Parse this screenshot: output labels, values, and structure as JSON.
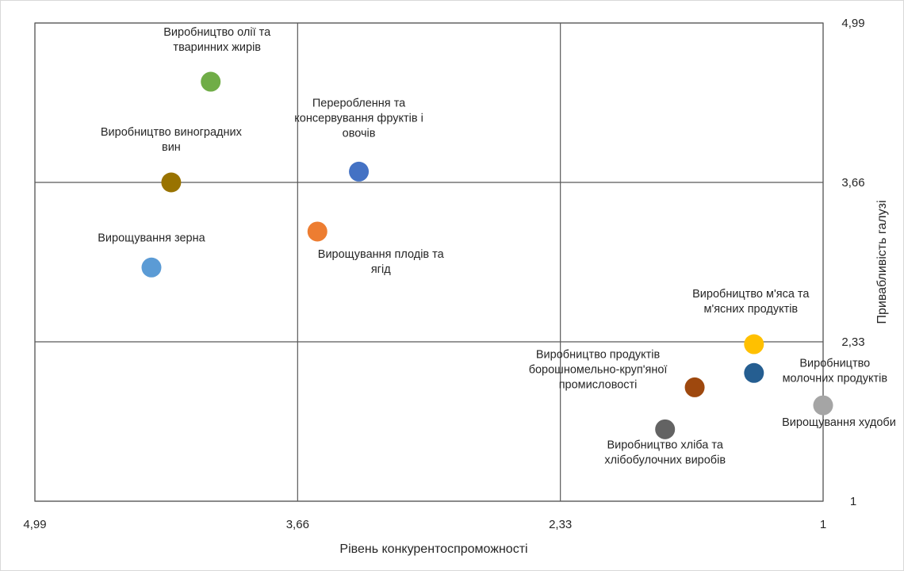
{
  "chart_data": {
    "type": "scatter",
    "xlabel": "Рівень конкурентоспроможності",
    "ylabel": "Привабливість галузі",
    "x_reversed": true,
    "xlim": [
      1,
      4.99
    ],
    "ylim": [
      1,
      4.99
    ],
    "x_ticks": [
      "4,99",
      "3,66",
      "2,33",
      "1"
    ],
    "y_ticks": [
      "4,99",
      "3,66",
      "2,33",
      "1"
    ],
    "x_tick_values": [
      4.99,
      3.66,
      2.33,
      1
    ],
    "y_tick_values": [
      4.99,
      3.66,
      2.33,
      1
    ],
    "grid": true,
    "points": [
      {
        "lines": [
          "Виробництво олії та",
          "тваринних жирів"
        ],
        "x": 4.1,
        "y": 4.5,
        "color": "#70ad47"
      },
      {
        "lines": [
          "Виробництво виноградних",
          "вин"
        ],
        "x": 4.3,
        "y": 3.66,
        "color": "#997300"
      },
      {
        "lines": [
          "Перероблення та",
          "консервування фруктів і",
          "овочів"
        ],
        "x": 3.35,
        "y": 3.75,
        "color": "#4472c4"
      },
      {
        "lines": [
          "Вирощування плодів та",
          "ягід"
        ],
        "x": 3.56,
        "y": 3.25,
        "color": "#ed7d31"
      },
      {
        "lines": [
          "Вирощування зерна"
        ],
        "x": 4.4,
        "y": 2.95,
        "color": "#5b9bd5"
      },
      {
        "lines": [
          "Виробництво м'яса та",
          "м'ясних продуктів"
        ],
        "x": 1.35,
        "y": 2.31,
        "color": "#ffc000"
      },
      {
        "lines": [
          "Виробництво",
          "молочних продуктів"
        ],
        "x": 1.35,
        "y": 2.07,
        "color": "#255e91"
      },
      {
        "lines": [
          "Виробництво продуктів",
          "борошномельно-круп'яної",
          "промисловості"
        ],
        "x": 1.65,
        "y": 1.95,
        "color": "#9e480e"
      },
      {
        "lines": [
          "Вирощування худоби"
        ],
        "x": 1.0,
        "y": 1.8,
        "color": "#a5a5a5"
      },
      {
        "lines": [
          "Виробництво хліба та",
          "хлібобулочних виробів"
        ],
        "x": 1.8,
        "y": 1.6,
        "color": "#636363"
      }
    ]
  }
}
